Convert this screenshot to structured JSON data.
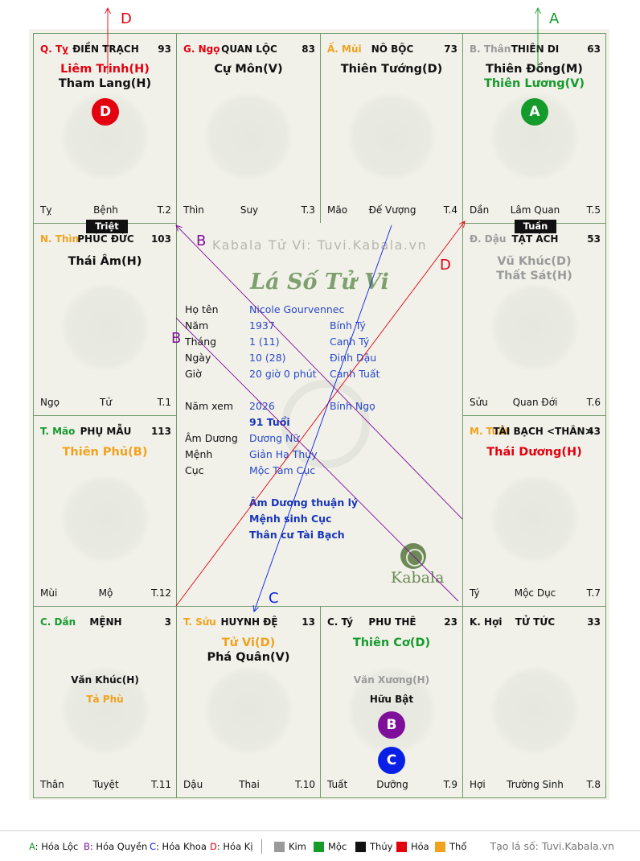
{
  "colors": {
    "red": "#e3000f",
    "green": "#159a2c",
    "orange": "#f0a21c",
    "gray": "#9a9a9a",
    "black": "#111111",
    "blue": "#0a1fe6",
    "purple": "#7f0f9b"
  },
  "arrows": [
    {
      "label": "D",
      "color": "#e3000f"
    },
    {
      "label": "A",
      "color": "#159a2c"
    }
  ],
  "cells": [
    {
      "id": "ty",
      "branch": "Q. Tỵ",
      "branch_color": "#e3000f",
      "palace": "ĐIỀN TRẠCH",
      "num": "93",
      "stars": [
        {
          "t": "Liêm Trinh(H)",
          "c": "#e3000f",
          "cls": "s-main"
        },
        {
          "t": "Tham Lang(H)",
          "c": "#111111",
          "cls": "s-main"
        }
      ],
      "badge": {
        "t": "D",
        "c": "#e3000f"
      },
      "footer": {
        "b": "Tỵ",
        "s": "Bệnh",
        "n": "T.2"
      }
    },
    {
      "id": "ngo",
      "branch": "G. Ngọ",
      "branch_color": "#e3000f",
      "palace": "QUAN LỘC",
      "num": "83",
      "stars": [
        {
          "t": "Cự Môn(V)",
          "c": "#111111",
          "cls": "s-main"
        }
      ],
      "footer": {
        "b": "Thìn",
        "s": "Suy",
        "n": "T.3"
      }
    },
    {
      "id": "mui",
      "branch": "Ấ. Mùi",
      "branch_color": "#f0a21c",
      "palace": "NÔ BỘC",
      "num": "73",
      "stars": [
        {
          "t": "Thiên Tướng(D)",
          "c": "#111111",
          "cls": "s-main"
        }
      ],
      "footer": {
        "b": "Mão",
        "s": "Đế Vượng",
        "n": "T.4"
      }
    },
    {
      "id": "than",
      "branch": "B. Thân",
      "branch_color": "#9a9a9a",
      "palace": "THIÊN DI",
      "num": "63",
      "stars": [
        {
          "t": "Thiên Đồng(M)",
          "c": "#111111",
          "cls": "s-main"
        },
        {
          "t": "Thiên Lương(V)",
          "c": "#159a2c",
          "cls": "s-main"
        }
      ],
      "badge": {
        "t": "A",
        "c": "#159a2c"
      },
      "footer": {
        "b": "Dần",
        "s": "Lâm Quan",
        "n": "T.5"
      }
    },
    {
      "id": "thin",
      "branch": "N. Thìn",
      "branch_color": "#f0a21c",
      "palace": "PHÚC ĐỨC",
      "num": "103",
      "stars": [
        {
          "t": "Thái Âm(H)",
          "c": "#111111",
          "cls": "s-main"
        }
      ],
      "footer": {
        "b": "Ngọ",
        "s": "Tử",
        "n": "T.1"
      }
    },
    {
      "id": "dau",
      "branch": "Đ. Dậu",
      "branch_color": "#9a9a9a",
      "palace": "TẬT ÁCH",
      "num": "53",
      "stars": [
        {
          "t": "Vũ Khúc(D)",
          "c": "#9a9a9a",
          "cls": "s-main"
        },
        {
          "t": "Thất Sát(H)",
          "c": "#9a9a9a",
          "cls": "s-main"
        }
      ],
      "footer": {
        "b": "Sửu",
        "s": "Quan Đới",
        "n": "T.6"
      }
    },
    {
      "id": "mao",
      "branch": "T. Mão",
      "branch_color": "#159a2c",
      "palace": "PHỤ MẪU",
      "num": "113",
      "stars": [
        {
          "t": "Thiên Phủ(B)",
          "c": "#f0a21c",
          "cls": "s-main"
        }
      ],
      "footer": {
        "b": "Mùi",
        "s": "Mộ",
        "n": "T.12"
      }
    },
    {
      "id": "tuat",
      "branch": "M. Tuất",
      "branch_color": "#f0a21c",
      "palace": "TÀI BẠCH <THÂN>",
      "num": "43",
      "stars": [
        {
          "t": "Thái Dương(H)",
          "c": "#e3000f",
          "cls": "s-main"
        }
      ],
      "footer": {
        "b": "Tý",
        "s": "Mộc Dục",
        "n": "T.7"
      }
    },
    {
      "id": "dan",
      "branch": "C. Dần",
      "branch_color": "#159a2c",
      "palace": "MỆNH",
      "num": "3",
      "stars": [
        {
          "t": "Văn Khúc(H)",
          "c": "#111111",
          "cls": "s-minor"
        },
        {
          "t": "Tả Phù",
          "c": "#f0a21c",
          "cls": "s-minor"
        }
      ],
      "footer": {
        "b": "Thân",
        "s": "Tuyệt",
        "n": "T.11"
      }
    },
    {
      "id": "suu",
      "branch": "T. Sửu",
      "branch_color": "#f0a21c",
      "palace": "HUYNH ĐỆ",
      "num": "13",
      "stars": [
        {
          "t": "Tử Vi(D)",
          "c": "#f0a21c",
          "cls": "s-main"
        },
        {
          "t": "Phá Quân(V)",
          "c": "#111111",
          "cls": "s-main"
        }
      ],
      "footer": {
        "b": "Dậu",
        "s": "Thai",
        "n": "T.10"
      }
    },
    {
      "id": "tys",
      "branch": "C. Tý",
      "branch_color": "#111111",
      "palace": "PHU THÊ",
      "num": "23",
      "stars": [
        {
          "t": "Thiên Cơ(D)",
          "c": "#159a2c",
          "cls": "s-main"
        },
        {
          "t": "Văn Xương(H)",
          "c": "#9a9a9a",
          "cls": "s-minor"
        },
        {
          "t": "Hữu Bật",
          "c": "#111111",
          "cls": "s-minor"
        }
      ],
      "badges": [
        {
          "t": "B",
          "c": "#7f0f9b"
        },
        {
          "t": "C",
          "c": "#0a1fe6"
        }
      ],
      "footer": {
        "b": "Tuất",
        "s": "Dưỡng",
        "n": "T.9"
      }
    },
    {
      "id": "hoi",
      "branch": "K. Hợi",
      "branch_color": "#111111",
      "palace": "TỬ TỨC",
      "num": "33",
      "stars": [],
      "footer": {
        "b": "Hợi",
        "s": "Trường Sinh",
        "n": "T.8"
      }
    }
  ],
  "tags": {
    "triet": "Triệt",
    "tuan": "Tuần"
  },
  "center": {
    "watermark": "Kabala Tử Vi: Tuvi.Kabala.vn",
    "title": "Lá Số Tử Vi",
    "rows": [
      {
        "label": "Họ tên",
        "v1": "Nicole Gourvennec",
        "v2": ""
      },
      {
        "label": "Năm",
        "v1": "1937",
        "v2": "Bính Tý"
      },
      {
        "label": "Tháng",
        "v1": "1  (11)",
        "v2": "Canh Tý"
      },
      {
        "label": "Ngày",
        "v1": "10  (28)",
        "v2": "Đinh Dậu"
      },
      {
        "label": "Giờ",
        "v1": "20 giờ 0 phút",
        "v2": "Canh Tuất"
      }
    ],
    "year_view": {
      "label": "Năm xem",
      "v1": "2026",
      "v2": "Bính Ngọ"
    },
    "age": "91 Tuổi",
    "rows2": [
      {
        "label": "Âm Dương",
        "v1": "Dương Nữ"
      },
      {
        "label": "Mệnh",
        "v1": "Giản Hạ Thủy"
      },
      {
        "label": "Cục",
        "v1": "Mộc Tam Cục"
      }
    ],
    "notes": [
      "Âm Dương thuận lý",
      "Mệnh sinh Cục",
      "Thân cư Tài Bạch"
    ],
    "logo_text": "Kabala"
  },
  "line_labels": [
    {
      "t": "B",
      "c": "#7f0f9b"
    },
    {
      "t": "B",
      "c": "#7f0f9b"
    },
    {
      "t": "D",
      "c": "#e3000f"
    },
    {
      "t": "C",
      "c": "#0a1fe6"
    }
  ],
  "legend": {
    "items": [
      {
        "k": "A",
        "rest": ": Hóa Lộc",
        "c": "#159a2c"
      },
      {
        "k": "B",
        "rest": ": Hóa Quyền",
        "c": "#7f0f9b"
      },
      {
        "k": "C",
        "rest": ": Hóa Khoa",
        "c": "#0a1fe6"
      },
      {
        "k": "D",
        "rest": ": Hóa Kị",
        "c": "#e3000f"
      }
    ],
    "elements": [
      {
        "t": "Kim",
        "c": "#9a9a9a"
      },
      {
        "t": "Mộc",
        "c": "#159a2c"
      },
      {
        "t": "Thủy",
        "c": "#111111"
      },
      {
        "t": "Hỏa",
        "c": "#e3000f"
      },
      {
        "t": "Thổ",
        "c": "#f0a21c"
      }
    ],
    "credit": "Tạo lá số: Tuvi.Kabala.vn"
  }
}
